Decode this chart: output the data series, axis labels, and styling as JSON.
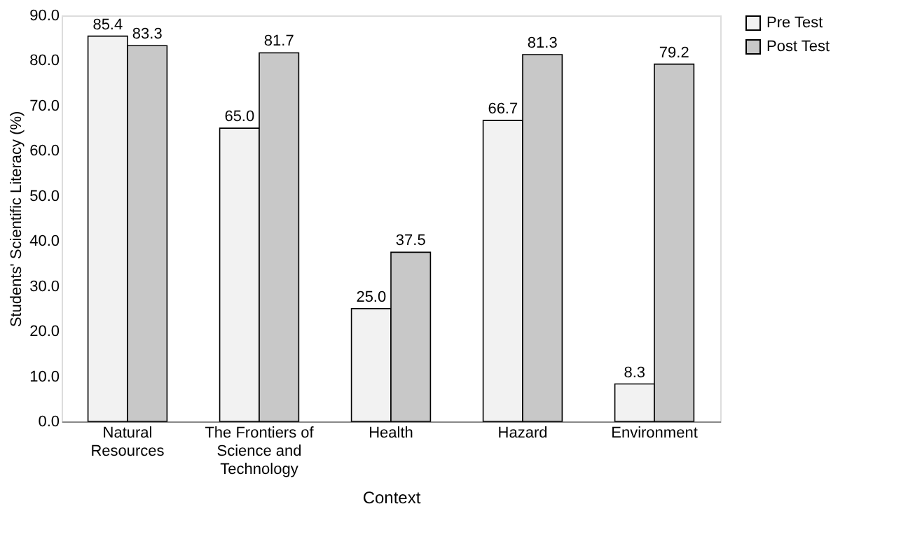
{
  "chart_data": {
    "type": "bar",
    "xlabel": "Context",
    "ylabel": "Students' Scientific Literacy (%)",
    "categories": [
      "Natural Resources",
      "The Frontiers of Science and Technology",
      "Health",
      "Hazard",
      "Environment"
    ],
    "series": [
      {
        "name": "Pre Test",
        "color": "#f2f2f2",
        "values": [
          85.4,
          65.0,
          25.0,
          66.7,
          8.3
        ],
        "value_labels": [
          "85.4",
          "65.0",
          "25.0",
          "66.7",
          "8.3"
        ]
      },
      {
        "name": "Post Test",
        "color": "#c8c8c8",
        "values": [
          83.3,
          81.7,
          37.5,
          81.3,
          79.2
        ],
        "value_labels": [
          "83.3",
          "81.7",
          "37.5",
          "81.3",
          "79.2"
        ]
      }
    ],
    "ylim": [
      0,
      90
    ],
    "yticks": [
      {
        "value": 0,
        "label": "0.0"
      },
      {
        "value": 10,
        "label": "10.0"
      },
      {
        "value": 20,
        "label": "20.0"
      },
      {
        "value": 30,
        "label": "30.0"
      },
      {
        "value": 40,
        "label": "40.0"
      },
      {
        "value": 50,
        "label": "50.0"
      },
      {
        "value": 60,
        "label": "60.0"
      },
      {
        "value": 70,
        "label": "70.0"
      },
      {
        "value": 80,
        "label": "80.0"
      },
      {
        "value": 90,
        "label": "90.0"
      }
    ],
    "legend": "right",
    "grid": false
  }
}
